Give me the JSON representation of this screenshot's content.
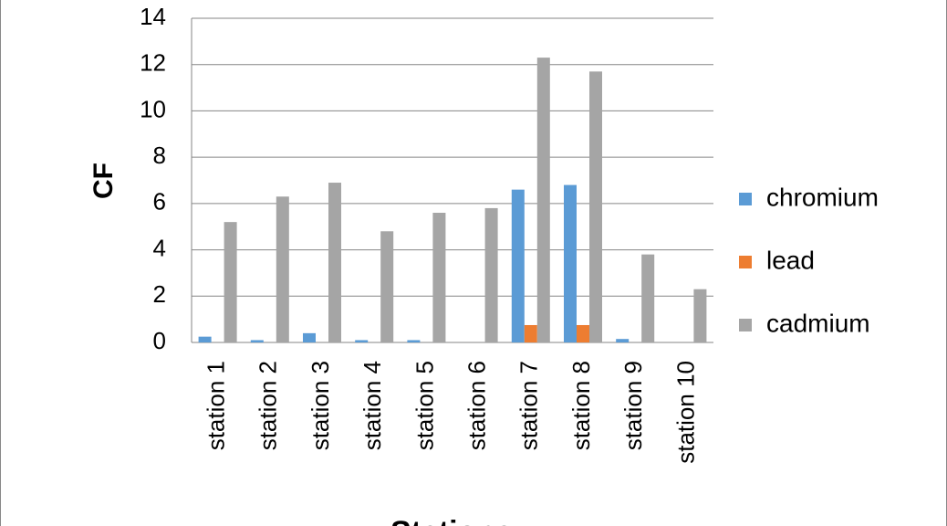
{
  "chart_data": {
    "type": "bar",
    "x_label": "Stations",
    "y_label": "CF",
    "categories": [
      "station 1",
      "station 2",
      "station 3",
      "station 4",
      "station 5",
      "station 6",
      "station 7",
      "station 8",
      "station 9",
      "station 10"
    ],
    "series": [
      {
        "name": "chromium",
        "color": "#5b9bd5",
        "values": [
          0.25,
          0.1,
          0.4,
          0.1,
          0.1,
          0,
          6.6,
          6.8,
          0.15,
          0
        ]
      },
      {
        "name": "lead",
        "color": "#ed7d31",
        "values": [
          0,
          0,
          0,
          0,
          0,
          0,
          0.75,
          0.75,
          0,
          0
        ]
      },
      {
        "name": "cadmium",
        "color": "#a5a5a5",
        "values": [
          5.2,
          6.3,
          6.9,
          4.8,
          5.6,
          5.8,
          12.3,
          11.7,
          3.8,
          2.3
        ]
      }
    ],
    "ylim": [
      0,
      14
    ],
    "yticks": [
      0,
      2,
      4,
      6,
      8,
      10,
      12,
      14
    ],
    "grid": true,
    "legend": "right"
  }
}
